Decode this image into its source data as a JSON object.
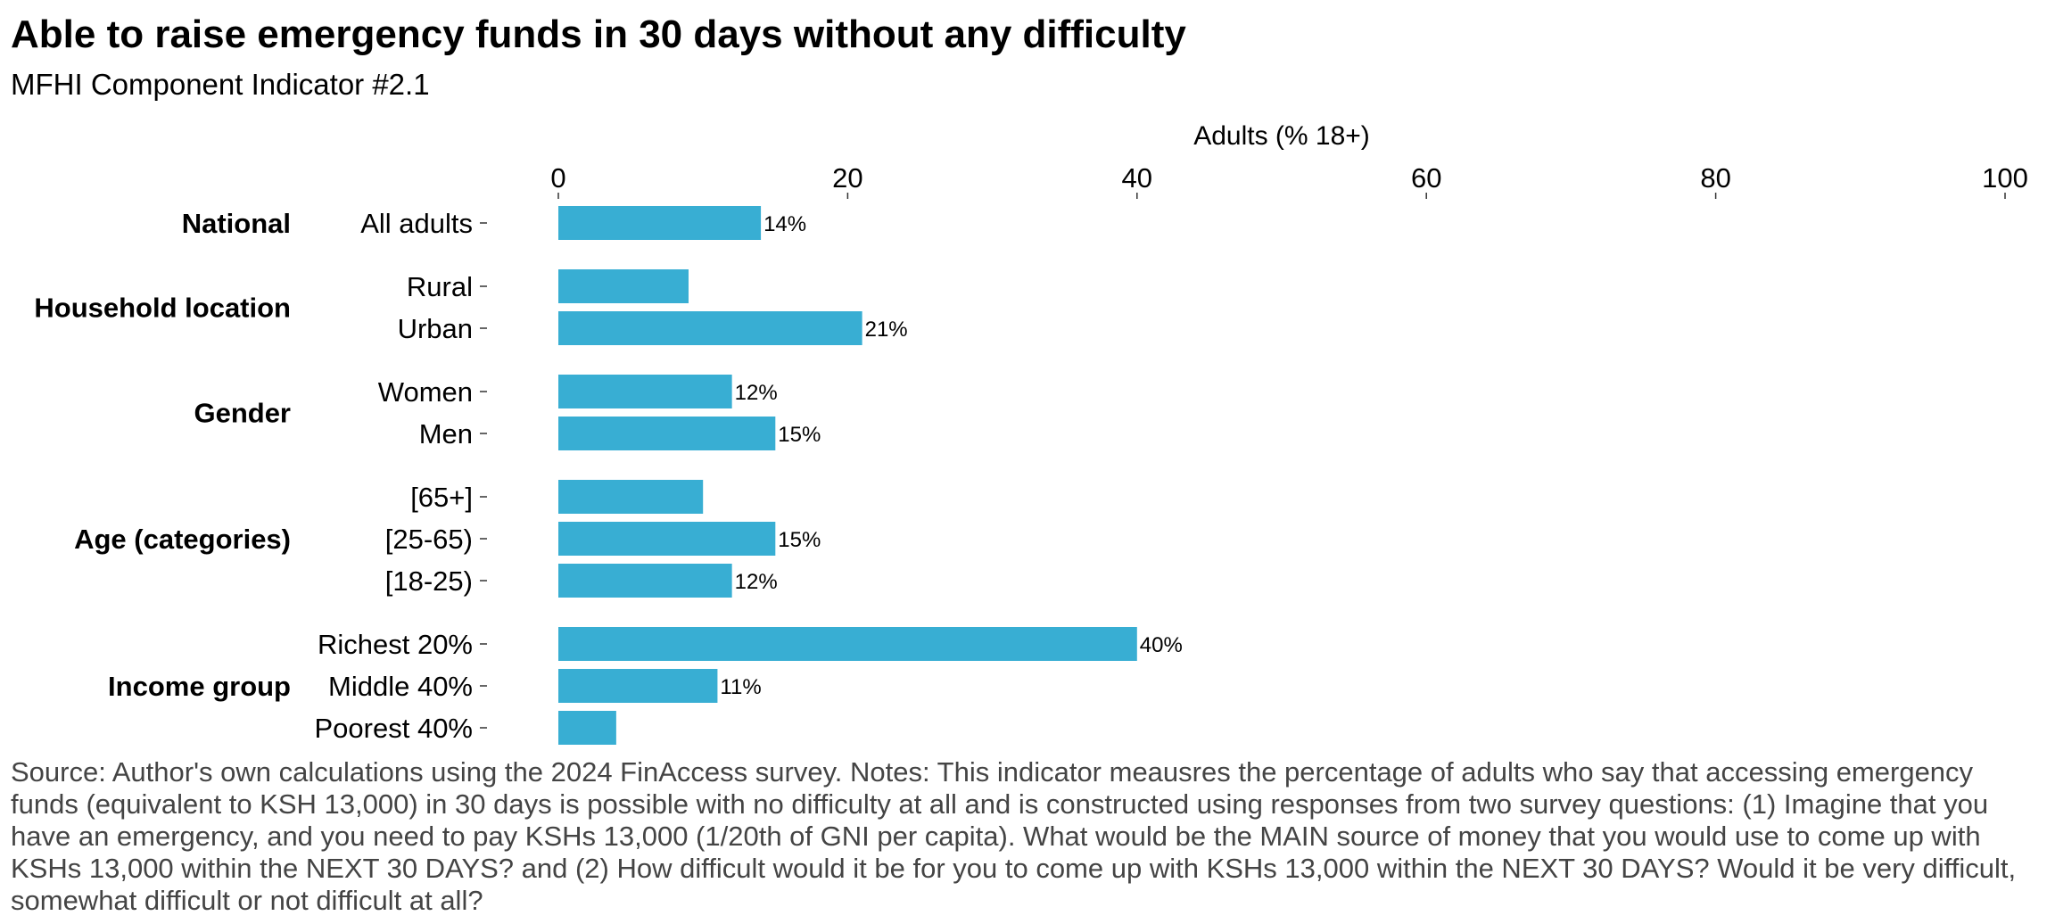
{
  "title": "Able to raise emergency funds in 30 days without any difficulty",
  "subtitle": "MFHI Component Indicator #2.1",
  "caption": "Source: Author's own calculations using the 2024 FinAccess survey. Notes: This indicator meausres the percentage of adults who say that accessing emergency funds (equivalent to KSH 13,000) in 30 days is possible with no difficulty at all and is constructed using responses from two survey questions: (1) Imagine that you have an emergency, and you need to pay KSHs 13,000 (1/20th of GNI per capita). What would be the MAIN source of money that you would use to come up with KSHs 13,000 within the NEXT 30 DAYS? and (2) How difficult would it be for you to come up with KSHs 13,000 within the NEXT 30 DAYS? Would it be very difficult, somewhat difficult or not difficult at all?",
  "colors": {
    "bar": "#38AED3"
  },
  "chart_data": {
    "type": "bar",
    "orientation": "horizontal",
    "xlabel": "Adults (% 18+)",
    "xaxis_position": "top",
    "xlim": [
      0,
      100
    ],
    "xticks": [
      0,
      20,
      40,
      60,
      80,
      100
    ],
    "grid": false,
    "groups": [
      {
        "name": "National",
        "bars": [
          {
            "label": "All adults",
            "value": 14,
            "data_label": "14%"
          }
        ]
      },
      {
        "name": "Household location",
        "bars": [
          {
            "label": "Rural",
            "value": 9,
            "data_label": ""
          },
          {
            "label": "Urban",
            "value": 21,
            "data_label": "21%"
          }
        ]
      },
      {
        "name": "Gender",
        "bars": [
          {
            "label": "Women",
            "value": 12,
            "data_label": "12%"
          },
          {
            "label": "Men",
            "value": 15,
            "data_label": "15%"
          }
        ]
      },
      {
        "name": "Age (categories)",
        "bars": [
          {
            "label": "[65+]",
            "value": 10,
            "data_label": ""
          },
          {
            "label": "[25-65)",
            "value": 15,
            "data_label": "15%"
          },
          {
            "label": "[18-25)",
            "value": 12,
            "data_label": "12%"
          }
        ]
      },
      {
        "name": "Income group",
        "bars": [
          {
            "label": "Richest 20%",
            "value": 40,
            "data_label": "40%"
          },
          {
            "label": "Middle 40%",
            "value": 11,
            "data_label": "11%"
          },
          {
            "label": "Poorest 40%",
            "value": 4,
            "data_label": ""
          }
        ]
      }
    ]
  }
}
